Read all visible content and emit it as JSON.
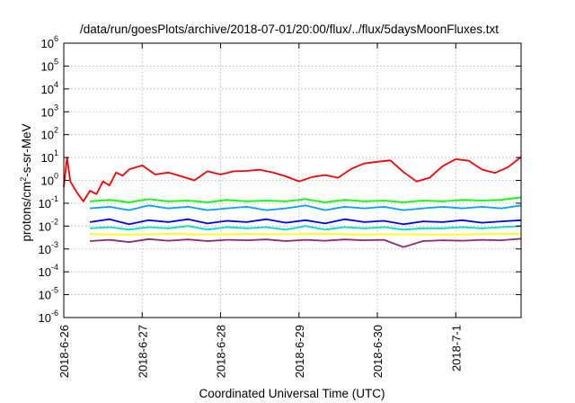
{
  "chart_data": {
    "type": "line",
    "title": "/data/run/goesPlots/archive/2018-07-01/20:00/flux/../flux/5daysMoonFluxes.txt",
    "xlabel": "Coordinated Universal Time (UTC)",
    "ylabel_prefix": "protons/cm",
    "ylabel_sup": "2",
    "ylabel_suffix": "-s-sr-MeV",
    "y_scale": "log",
    "ylim": [
      1e-06,
      1000000.0
    ],
    "y_ticks": [
      {
        "base": "10",
        "exp": "-6"
      },
      {
        "base": "10",
        "exp": "-5"
      },
      {
        "base": "10",
        "exp": "-4"
      },
      {
        "base": "10",
        "exp": "-3"
      },
      {
        "base": "10",
        "exp": "-2"
      },
      {
        "base": "10",
        "exp": "-1"
      },
      {
        "base": "10",
        "exp": "0"
      },
      {
        "base": "10",
        "exp": "1"
      },
      {
        "base": "10",
        "exp": "2"
      },
      {
        "base": "10",
        "exp": "3"
      },
      {
        "base": "10",
        "exp": "4"
      },
      {
        "base": "10",
        "exp": "5"
      },
      {
        "base": "10",
        "exp": "6"
      }
    ],
    "xlim": [
      "2018-06-26 00:00",
      "2018-07-01 20:00"
    ],
    "x_ticks": [
      "2018-6-26",
      "2018-6-27",
      "2018-6-28",
      "2018-6-29",
      "2018-6-30",
      "2018-7-1"
    ],
    "grid": true,
    "series": [
      {
        "color": "#ff0000",
        "x": [
          "2018-06-26 00:00",
          "2018-06-26 01:00",
          "2018-06-26 02:00",
          "2018-06-26 04:00",
          "2018-06-26 06:00",
          "2018-06-26 08:00",
          "2018-06-26 10:00",
          "2018-06-26 12:00",
          "2018-06-26 14:00",
          "2018-06-26 16:00",
          "2018-06-26 18:00",
          "2018-06-26 20:00",
          "2018-06-27 00:00",
          "2018-06-27 04:00",
          "2018-06-27 08:00",
          "2018-06-27 12:00",
          "2018-06-27 16:00",
          "2018-06-27 20:00",
          "2018-06-28 00:00",
          "2018-06-28 04:00",
          "2018-06-28 08:00",
          "2018-06-28 12:00",
          "2018-06-28 16:00",
          "2018-06-28 20:00",
          "2018-06-29 00:00",
          "2018-06-29 04:00",
          "2018-06-29 08:00",
          "2018-06-29 12:00",
          "2018-06-29 16:00",
          "2018-06-29 20:00",
          "2018-06-30 00:00",
          "2018-06-30 04:00",
          "2018-06-30 08:00",
          "2018-06-30 12:00",
          "2018-06-30 16:00",
          "2018-06-30 20:00",
          "2018-07-01 00:00",
          "2018-07-01 04:00",
          "2018-07-01 08:00",
          "2018-07-01 12:00",
          "2018-07-01 16:00",
          "2018-07-01 20:00"
        ],
        "y": [
          0.5,
          10,
          0.9,
          0.3,
          0.12,
          0.35,
          0.25,
          0.9,
          0.6,
          2.2,
          1.6,
          3.0,
          4.5,
          1.8,
          2.2,
          1.5,
          1.0,
          2.5,
          1.8,
          2.5,
          2.6,
          2.9,
          2.2,
          1.5,
          0.9,
          1.4,
          1.7,
          1.3,
          3.2,
          5.5,
          6.5,
          7.5,
          2.3,
          0.9,
          1.3,
          4.2,
          8.5,
          7.2,
          3.0,
          2.1,
          3.8,
          10.5
        ]
      },
      {
        "color": "#00ff00",
        "x": [
          "2018-06-26 08:00",
          "2018-06-26 14:00",
          "2018-06-26 20:00",
          "2018-06-27 02:00",
          "2018-06-27 08:00",
          "2018-06-27 14:00",
          "2018-06-27 20:00",
          "2018-06-28 02:00",
          "2018-06-28 08:00",
          "2018-06-28 14:00",
          "2018-06-28 20:00",
          "2018-06-29 02:00",
          "2018-06-29 08:00",
          "2018-06-29 14:00",
          "2018-06-29 20:00",
          "2018-06-30 02:00",
          "2018-06-30 08:00",
          "2018-06-30 14:00",
          "2018-06-30 20:00",
          "2018-07-01 02:00",
          "2018-07-01 08:00",
          "2018-07-01 14:00",
          "2018-07-01 20:00"
        ],
        "y": [
          0.12,
          0.14,
          0.11,
          0.15,
          0.12,
          0.13,
          0.11,
          0.14,
          0.12,
          0.13,
          0.12,
          0.15,
          0.11,
          0.14,
          0.12,
          0.13,
          0.11,
          0.13,
          0.12,
          0.14,
          0.13,
          0.14,
          0.18
        ]
      },
      {
        "color": "#00a0ff",
        "x": [
          "2018-06-26 08:00",
          "2018-06-26 14:00",
          "2018-06-26 20:00",
          "2018-06-27 02:00",
          "2018-06-27 08:00",
          "2018-06-27 14:00",
          "2018-06-27 20:00",
          "2018-06-28 02:00",
          "2018-06-28 08:00",
          "2018-06-28 14:00",
          "2018-06-28 20:00",
          "2018-06-29 02:00",
          "2018-06-29 08:00",
          "2018-06-29 14:00",
          "2018-06-29 20:00",
          "2018-06-30 02:00",
          "2018-06-30 08:00",
          "2018-06-30 14:00",
          "2018-06-30 20:00",
          "2018-07-01 02:00",
          "2018-07-01 08:00",
          "2018-07-01 14:00",
          "2018-07-01 20:00"
        ],
        "y": [
          0.06,
          0.07,
          0.05,
          0.08,
          0.06,
          0.07,
          0.05,
          0.06,
          0.07,
          0.05,
          0.06,
          0.08,
          0.05,
          0.07,
          0.06,
          0.07,
          0.05,
          0.06,
          0.07,
          0.06,
          0.07,
          0.06,
          0.08
        ]
      },
      {
        "color": "#0000ff",
        "x": [
          "2018-06-26 08:00",
          "2018-06-26 14:00",
          "2018-06-26 20:00",
          "2018-06-27 02:00",
          "2018-06-27 08:00",
          "2018-06-27 14:00",
          "2018-06-27 20:00",
          "2018-06-28 02:00",
          "2018-06-28 08:00",
          "2018-06-28 14:00",
          "2018-06-28 20:00",
          "2018-06-29 02:00",
          "2018-06-29 08:00",
          "2018-06-29 14:00",
          "2018-06-29 20:00",
          "2018-06-30 02:00",
          "2018-06-30 08:00",
          "2018-06-30 14:00",
          "2018-06-30 20:00",
          "2018-07-01 02:00",
          "2018-07-01 08:00",
          "2018-07-01 14:00",
          "2018-07-01 20:00"
        ],
        "y": [
          0.015,
          0.02,
          0.012,
          0.018,
          0.015,
          0.02,
          0.013,
          0.017,
          0.015,
          0.02,
          0.014,
          0.018,
          0.013,
          0.02,
          0.015,
          0.017,
          0.012,
          0.016,
          0.015,
          0.018,
          0.014,
          0.016,
          0.018
        ]
      },
      {
        "color": "#00e0c0",
        "x": [
          "2018-06-26 08:00",
          "2018-06-26 14:00",
          "2018-06-26 20:00",
          "2018-06-27 02:00",
          "2018-06-27 08:00",
          "2018-06-27 14:00",
          "2018-06-27 20:00",
          "2018-06-28 02:00",
          "2018-06-28 08:00",
          "2018-06-28 14:00",
          "2018-06-28 20:00",
          "2018-06-29 02:00",
          "2018-06-29 08:00",
          "2018-06-29 14:00",
          "2018-06-29 20:00",
          "2018-06-30 02:00",
          "2018-06-30 08:00",
          "2018-06-30 14:00",
          "2018-06-30 20:00",
          "2018-07-01 02:00",
          "2018-07-01 08:00",
          "2018-07-01 14:00",
          "2018-07-01 20:00"
        ],
        "y": [
          0.008,
          0.009,
          0.007,
          0.009,
          0.008,
          0.01,
          0.007,
          0.009,
          0.008,
          0.009,
          0.007,
          0.01,
          0.007,
          0.009,
          0.008,
          0.009,
          0.007,
          0.008,
          0.008,
          0.009,
          0.008,
          0.009,
          0.01
        ]
      },
      {
        "color": "#ffff00",
        "x": [
          "2018-06-26 08:00",
          "2018-06-26 20:00",
          "2018-06-27 08:00",
          "2018-06-27 20:00",
          "2018-06-28 08:00",
          "2018-06-28 20:00",
          "2018-06-29 08:00",
          "2018-06-29 20:00",
          "2018-06-30 08:00",
          "2018-06-30 20:00",
          "2018-07-01 08:00",
          "2018-07-01 20:00"
        ],
        "y": [
          0.0045,
          0.0042,
          0.0046,
          0.0043,
          0.0045,
          0.0044,
          0.0046,
          0.0043,
          0.0044,
          0.0042,
          0.0045,
          0.0046
        ]
      },
      {
        "color": "#8b2a6e",
        "x": [
          "2018-06-26 08:00",
          "2018-06-26 14:00",
          "2018-06-26 20:00",
          "2018-06-27 02:00",
          "2018-06-27 08:00",
          "2018-06-27 14:00",
          "2018-06-27 20:00",
          "2018-06-28 02:00",
          "2018-06-28 08:00",
          "2018-06-28 14:00",
          "2018-06-28 20:00",
          "2018-06-29 02:00",
          "2018-06-29 08:00",
          "2018-06-29 14:00",
          "2018-06-29 20:00",
          "2018-06-30 02:00",
          "2018-06-30 08:00",
          "2018-06-30 14:00",
          "2018-06-30 20:00",
          "2018-07-01 02:00",
          "2018-07-01 08:00",
          "2018-07-01 14:00",
          "2018-07-01 20:00"
        ],
        "y": [
          0.0022,
          0.0025,
          0.002,
          0.0027,
          0.0023,
          0.0026,
          0.0022,
          0.0025,
          0.0024,
          0.0026,
          0.0022,
          0.0025,
          0.0023,
          0.0026,
          0.0024,
          0.0025,
          0.0012,
          0.0022,
          0.0024,
          0.0023,
          0.0025,
          0.0024,
          0.0028
        ]
      }
    ]
  }
}
